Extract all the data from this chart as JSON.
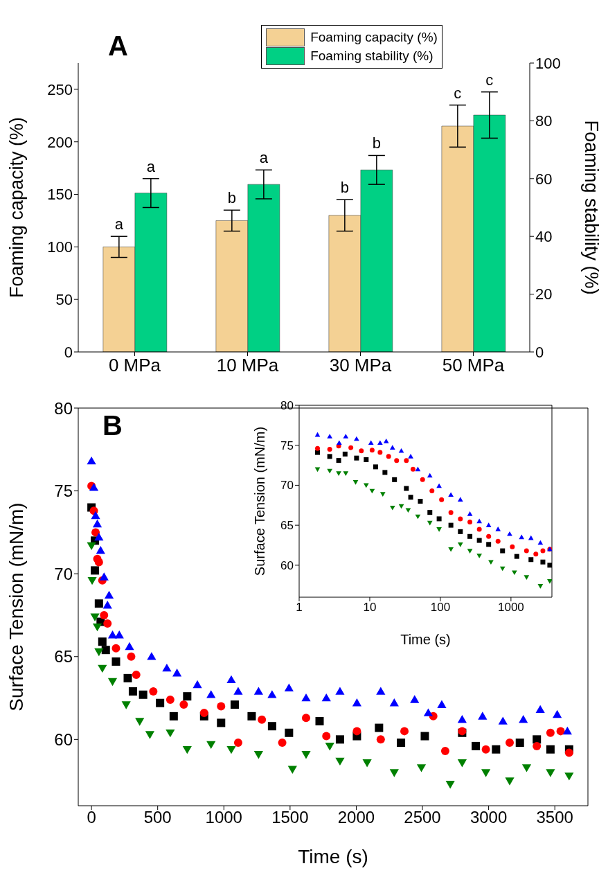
{
  "chart_data": [
    {
      "type": "bar",
      "title": "A",
      "categories": [
        "0 MPa",
        "10 MPa",
        "30 MPa",
        "50 MPa"
      ],
      "ylabel": "Foaming capacity (%)",
      "y2label": "Foaming stability (%)",
      "ylim": [
        0,
        275
      ],
      "yticks": [
        0,
        50,
        100,
        150,
        200,
        250
      ],
      "y2lim": [
        0,
        100
      ],
      "y2ticks": [
        0,
        20,
        40,
        60,
        80,
        100
      ],
      "legend": "top",
      "series": [
        {
          "name": "Foaming capacity (%)",
          "color": "#f4d194",
          "values": [
            100,
            125,
            130,
            215
          ],
          "errors": [
            10,
            10,
            15,
            20
          ]
        },
        {
          "name": "Foaming stability (%)",
          "color": "#00d084",
          "values": [
            55,
            58,
            63,
            82
          ],
          "errors": [
            5,
            5,
            5,
            8
          ],
          "axis": "y2"
        }
      ],
      "annotations": [
        "a",
        "b",
        "b",
        "c",
        "a",
        "a",
        "b",
        "c"
      ]
    },
    {
      "type": "scatter",
      "title": "B",
      "xlabel": "Time (s)",
      "ylabel": "Surface Tension (mN/m)",
      "xlim": [
        -100,
        3750
      ],
      "xticks": [
        0,
        500,
        1000,
        1500,
        2000,
        2500,
        3000,
        3500
      ],
      "ylim": [
        56,
        80
      ],
      "yticks": [
        60,
        65,
        70,
        75,
        80
      ],
      "series": [
        {
          "color": "#000000",
          "marker": "square",
          "x": [
            0,
            26,
            26,
            56,
            69,
            82,
            108,
            185,
            274,
            313,
            390,
            518,
            723,
            621,
            851,
            979,
            1082,
            1210,
            1364,
            1492,
            1723,
            1877,
            2005,
            2172,
            2338,
            2518,
            2800,
            2903,
            3056,
            3236,
            3364,
            3467,
            3608
          ],
          "values": [
            74.0,
            72.0,
            70.2,
            68.2,
            67.1,
            65.9,
            65.4,
            64.7,
            63.7,
            62.9,
            62.7,
            62.2,
            62.6,
            61.4,
            61.4,
            61.0,
            62.1,
            61.4,
            60.8,
            60.4,
            61.1,
            60.0,
            60.2,
            60.7,
            59.8,
            60.2,
            60.4,
            59.6,
            59.4,
            59.8,
            60.0,
            59.4,
            59.4
          ]
        },
        {
          "color": "#ff0000",
          "marker": "circle",
          "x": [
            0,
            18,
            31,
            44,
            56,
            82,
            95,
            121,
            185,
            300,
            338,
            467,
            595,
            697,
            851,
            979,
            1108,
            1287,
            1441,
            1621,
            1774,
            2005,
            2185,
            2364,
            2582,
            2672,
            2800,
            2979,
            3159,
            3364,
            3467,
            3544,
            3608
          ],
          "values": [
            75.3,
            73.8,
            72.5,
            70.9,
            70.7,
            69.6,
            67.5,
            67.0,
            65.5,
            65.0,
            63.9,
            62.9,
            62.4,
            62.1,
            61.6,
            62.0,
            59.8,
            61.2,
            59.8,
            61.3,
            60.2,
            60.5,
            60.0,
            60.5,
            61.4,
            59.3,
            60.5,
            59.4,
            59.8,
            59.6,
            60.4,
            60.5,
            59.2
          ]
        },
        {
          "color": "#0000ff",
          "marker": "triangle",
          "x": [
            0,
            18,
            31,
            44,
            56,
            69,
            95,
            121,
            133,
            159,
            210,
            287,
            454,
            569,
            646,
            800,
            903,
            1056,
            1108,
            1262,
            1364,
            1492,
            1621,
            1774,
            1877,
            2005,
            2185,
            2287,
            2441,
            2544,
            2646,
            2800,
            2954,
            3108,
            3262,
            3390,
            3518,
            3595
          ],
          "values": [
            76.8,
            75.2,
            73.5,
            73.0,
            72.2,
            71.4,
            69.8,
            68.1,
            68.7,
            66.3,
            66.3,
            65.6,
            65.0,
            64.3,
            64.0,
            63.3,
            62.7,
            63.6,
            62.9,
            62.9,
            62.7,
            63.1,
            62.5,
            62.5,
            62.9,
            62.2,
            62.9,
            62.2,
            62.4,
            61.6,
            62.1,
            61.2,
            61.4,
            61.1,
            61.2,
            61.8,
            61.5,
            60.5
          ]
        },
        {
          "color": "#008000",
          "marker": "triangle-down",
          "x": [
            0,
            5,
            26,
            44,
            56,
            82,
            159,
            262,
            364,
            441,
            595,
            723,
            903,
            1056,
            1262,
            1518,
            1621,
            1800,
            1877,
            2082,
            2287,
            2492,
            2710,
            2800,
            2979,
            3159,
            3287,
            3467,
            3608
          ],
          "values": [
            71.7,
            69.6,
            67.4,
            66.8,
            65.3,
            64.3,
            63.5,
            62.1,
            61.1,
            60.3,
            60.4,
            59.4,
            59.7,
            59.4,
            59.1,
            58.2,
            59.1,
            59.6,
            58.7,
            58.6,
            58.0,
            58.3,
            57.3,
            58.6,
            58.0,
            57.5,
            58.3,
            58.0,
            57.8
          ]
        }
      ]
    },
    {
      "type": "scatter",
      "xlabel": "Time (s)",
      "ylabel": "Surface Tension (mN/m)",
      "log": "x",
      "xlim": [
        1,
        3800
      ],
      "xticks": [
        1,
        10,
        100,
        1000
      ],
      "ylim": [
        56,
        80
      ],
      "yticks": [
        60,
        65,
        70,
        75,
        80
      ],
      "series": [
        {
          "color": "#000000",
          "marker": "square",
          "x": [
            1.82,
            2.71,
            3.63,
            4.47,
            6.5,
            8.9,
            12.1,
            16.4,
            22.4,
            33,
            38,
            52,
            71,
            96,
            141,
            192,
            262,
            356,
            483,
            760,
            1210,
            1920,
            2830,
            3545
          ],
          "values": [
            74.1,
            73.6,
            73.1,
            73.9,
            73.4,
            73.2,
            72.3,
            71.6,
            70.7,
            69.6,
            68.5,
            68.0,
            66.6,
            65.8,
            65.0,
            64.2,
            63.6,
            63.1,
            62.6,
            61.8,
            61.1,
            60.7,
            60.4,
            60.0
          ]
        },
        {
          "color": "#ff0000",
          "marker": "circle",
          "x": [
            1.82,
            2.71,
            3.63,
            5.4,
            7.6,
            10.8,
            14,
            18.5,
            24,
            33,
            41,
            56,
            76,
            104,
            141,
            192,
            262,
            356,
            483,
            656,
            1045,
            1660,
            2250,
            2830,
            3545
          ],
          "values": [
            74.6,
            74.5,
            74.9,
            74.7,
            74.3,
            74.4,
            74.1,
            73.6,
            73.1,
            73.1,
            72.0,
            70.7,
            69.3,
            68.2,
            66.6,
            65.8,
            65.4,
            64.5,
            63.6,
            63.0,
            62.3,
            61.8,
            61.4,
            61.8,
            62.0
          ]
        },
        {
          "color": "#0000ff",
          "marker": "triangle",
          "x": [
            1.82,
            2.71,
            3.69,
            4.57,
            6.5,
            10.4,
            14,
            17.1,
            21,
            28,
            38,
            48,
            71,
            96,
            141,
            192,
            262,
            356,
            483,
            656,
            958,
            1413,
            1920,
            2610,
            3545
          ],
          "values": [
            76.3,
            76.1,
            75.3,
            76.1,
            75.8,
            75.3,
            75.3,
            75.5,
            74.7,
            74.3,
            73.6,
            72.0,
            71.2,
            69.9,
            68.8,
            68.2,
            66.4,
            65.5,
            65.0,
            64.5,
            63.9,
            63.5,
            63.4,
            62.8,
            62.0
          ]
        },
        {
          "color": "#008000",
          "marker": "triangle-down",
          "x": [
            1.82,
            2.71,
            3.63,
            4.57,
            6.3,
            8.9,
            10.8,
            15.3,
            21,
            28,
            35,
            48,
            71,
            96,
            141,
            192,
            262,
            356,
            520,
            760,
            1120,
            1660,
            2610,
            3545
          ],
          "values": [
            72.0,
            71.8,
            71.5,
            71.5,
            70.4,
            70.0,
            69.3,
            68.9,
            67.2,
            67.4,
            66.9,
            66.1,
            65.3,
            64.5,
            62.0,
            62.6,
            61.8,
            61.2,
            60.4,
            59.6,
            59.1,
            58.5,
            57.4,
            58.0
          ]
        }
      ]
    }
  ]
}
